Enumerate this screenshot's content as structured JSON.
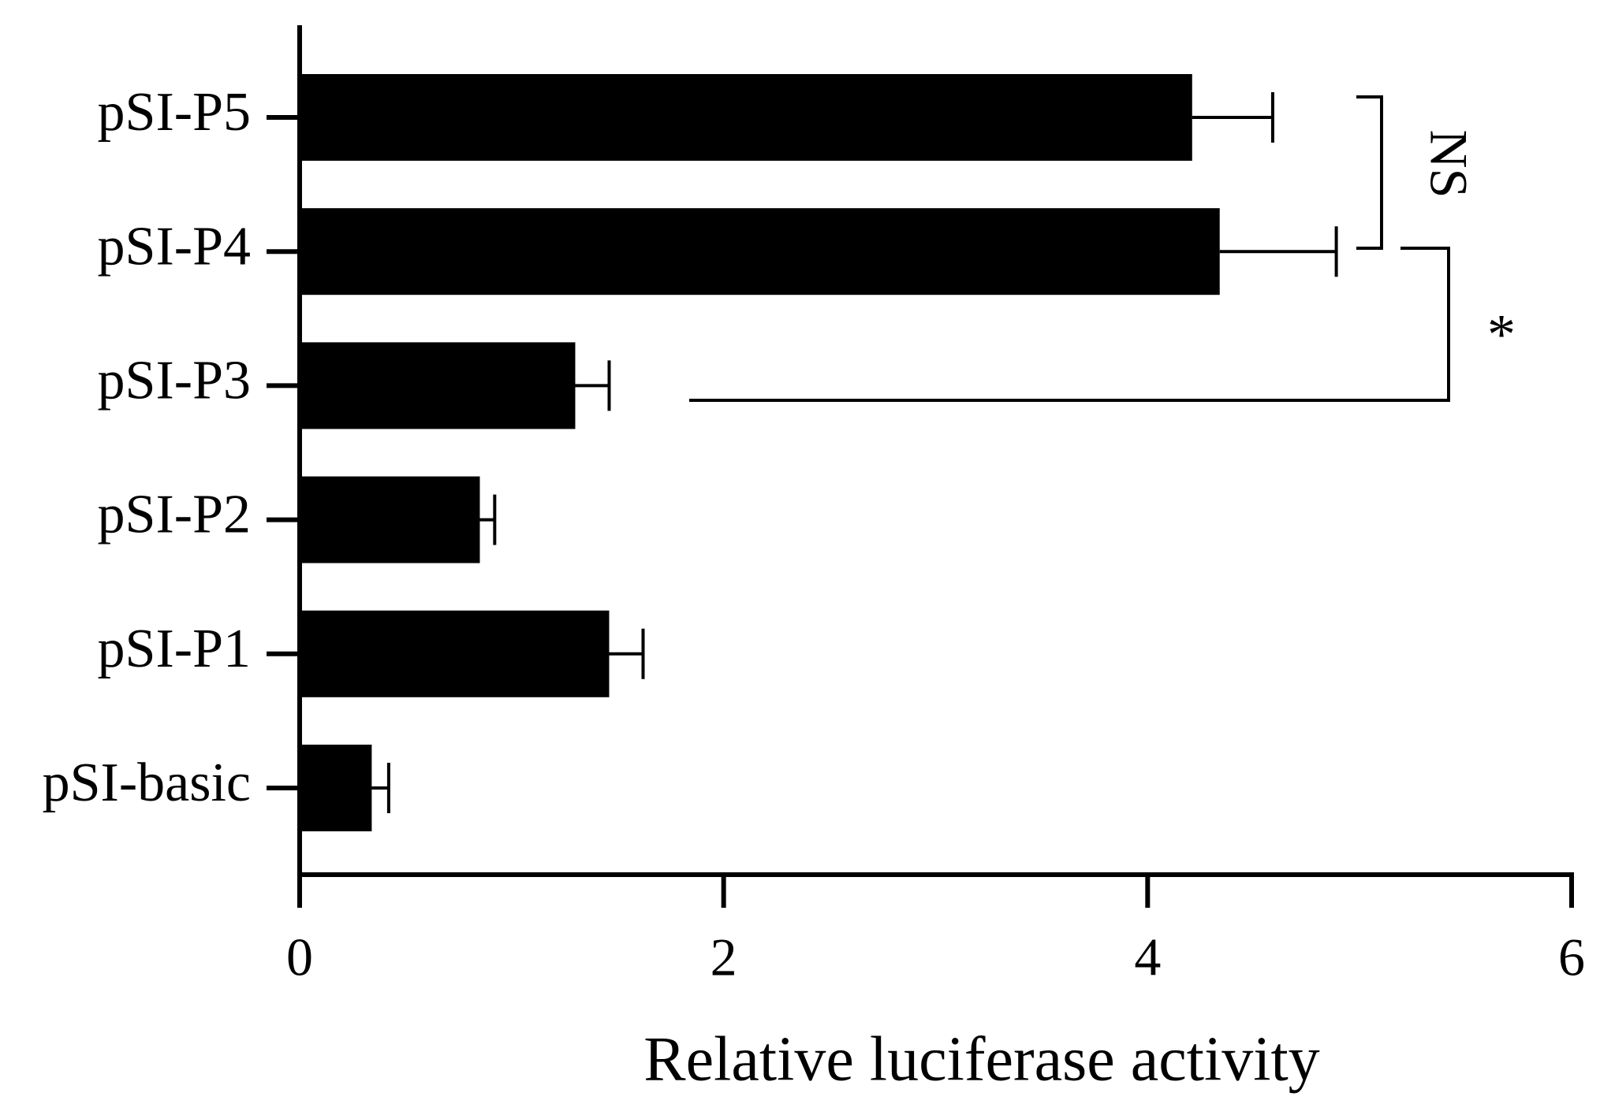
{
  "chart_data": {
    "type": "bar",
    "orientation": "horizontal",
    "x_label": "Relative luciferase activity",
    "categories": [
      "pSI-P5",
      "pSI-P4",
      "pSI-P3",
      "pSI-P2",
      "pSI-P1",
      "pSI-basic"
    ],
    "values": [
      4.21,
      4.34,
      1.3,
      0.85,
      1.46,
      0.34
    ],
    "errors": [
      0.38,
      0.55,
      0.16,
      0.07,
      0.16,
      0.08
    ],
    "color": "#000000",
    "xlim": [
      0,
      6
    ],
    "xticks": [
      0,
      2,
      4,
      6
    ],
    "annotations": [
      "NS",
      "*"
    ]
  }
}
